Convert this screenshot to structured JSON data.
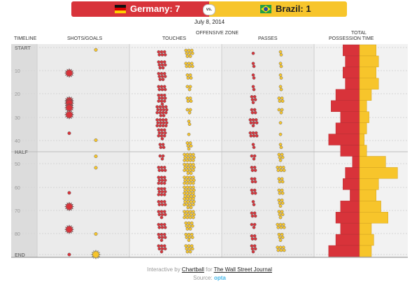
{
  "banner": {
    "home": "Germany: 7",
    "vs": "vs.",
    "away": "Brazil: 1",
    "home_color": "#d8333a",
    "away_color": "#f7c52b"
  },
  "date": "July 8, 2014",
  "headers": {
    "timeline": "TIMELINE",
    "shots": "SHOTS/GOALS",
    "offensive_zone": "OFFENSIVE ZONE",
    "touches": "TOUCHES",
    "passes": "PASSES",
    "possession_1": "TOTAL",
    "possession_2": "POSSESSION TIME"
  },
  "footer": {
    "prefix": "Interactive by",
    "chartball": "Chartball",
    "for": "for",
    "wsj": "The Wall Street Journal",
    "source_label": "Source:",
    "source_name": "opta"
  },
  "chart_data": {
    "type": "match-timeline",
    "y_axis": {
      "labels": [
        "START",
        "10",
        "20",
        "30",
        "40",
        "HALF",
        "50",
        "60",
        "70",
        "80",
        "END"
      ]
    },
    "teams": [
      {
        "name": "Germany",
        "color": "#d8333a"
      },
      {
        "name": "Brazil",
        "color": "#f7c52b"
      }
    ],
    "shots": {
      "Germany": [
        {
          "minute": 11,
          "kind": "goal"
        },
        {
          "minute": 23,
          "kind": "goal"
        },
        {
          "minute": 24,
          "kind": "goal"
        },
        {
          "minute": 26,
          "kind": "goal"
        },
        {
          "minute": 29,
          "kind": "goal"
        },
        {
          "minute": 37,
          "kind": "shot"
        },
        {
          "minute": 63,
          "kind": "shot"
        },
        {
          "minute": 69,
          "kind": "goal"
        },
        {
          "minute": 79,
          "kind": "goal"
        },
        {
          "minute": 90,
          "kind": "shot"
        }
      ],
      "Brazil": [
        {
          "minute": 1,
          "kind": "shot"
        },
        {
          "minute": 40,
          "kind": "shot"
        },
        {
          "minute": 47,
          "kind": "shot"
        },
        {
          "minute": 52,
          "kind": "shot"
        },
        {
          "minute": 81,
          "kind": "shot"
        },
        {
          "minute": 90,
          "kind": "goal"
        }
      ]
    },
    "touches_per_bin": {
      "Germany": [
        6,
        8,
        8,
        6,
        10,
        14,
        12,
        10,
        4,
        3,
        6,
        9,
        9,
        6,
        7,
        6,
        7,
        7
      ],
      "Brazil": [
        8,
        6,
        4,
        3,
        4,
        3,
        2,
        1,
        5,
        12,
        14,
        12,
        16,
        14,
        12,
        8,
        7,
        8
      ]
    },
    "passes_per_bin": {
      "Germany": [
        1,
        2,
        2,
        2,
        5,
        4,
        7,
        6,
        2,
        3,
        4,
        4,
        4,
        2,
        4,
        3,
        4,
        5
      ],
      "Brazil": [
        2,
        2,
        2,
        2,
        4,
        3,
        1,
        1,
        2,
        5,
        6,
        4,
        4,
        5,
        5,
        6,
        5,
        6
      ]
    },
    "possession_per_bin": {
      "Germany": [
        7,
        6,
        7,
        6,
        10,
        12,
        8,
        10,
        13,
        8,
        3,
        6,
        7,
        4,
        8,
        10,
        8,
        10,
        13
      ],
      "Brazil": [
        7,
        8,
        7,
        8,
        5,
        3,
        4,
        3,
        2,
        3,
        11,
        16,
        8,
        7,
        9,
        12,
        5,
        6,
        5
      ]
    }
  }
}
